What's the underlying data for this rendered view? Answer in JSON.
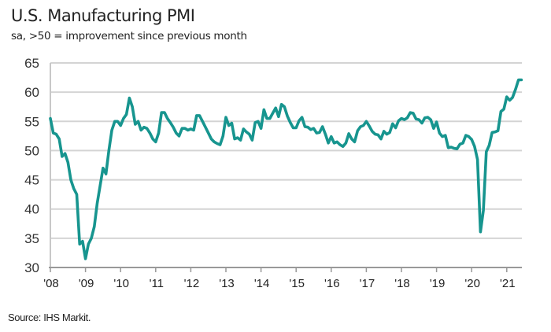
{
  "chart_data": {
    "type": "line",
    "title": "U.S. Manufacturing PMI",
    "subtitle": "sa, >50 = improvement since previous month",
    "source": "Source: IHS Markit.",
    "xlabel": "",
    "ylabel": "",
    "ylim": [
      30,
      65
    ],
    "yticks": [
      "30",
      "35",
      "40",
      "45",
      "50",
      "55",
      "60",
      "65"
    ],
    "xticks": [
      "'08",
      "'09",
      "'10",
      "'11",
      "'12",
      "'13",
      "'14",
      "'15",
      "'16",
      "'17",
      "'18",
      "'19",
      "'20",
      "'21"
    ],
    "grid": "horizontal",
    "line_color": "#17958f",
    "frequency": "monthly",
    "x_start": "2008-01",
    "x_end": "2021-06",
    "series": [
      {
        "values": [
          55.5,
          53.0,
          52.8,
          52.0,
          49.0,
          49.5,
          48.0,
          45.0,
          43.5,
          42.5,
          34.0,
          34.5,
          31.5,
          34.0,
          35.0,
          37.0,
          41.0,
          44.0,
          47.0,
          46.0,
          50.0,
          53.5,
          55.0,
          55.0,
          54.3,
          55.5,
          56.2,
          59.0,
          57.5,
          54.5,
          55.0,
          53.5,
          54.0,
          53.8,
          53.0,
          52.0,
          51.5,
          53.0,
          56.5,
          56.5,
          55.5,
          54.8,
          54.0,
          53.0,
          52.5,
          53.8,
          53.8,
          53.5,
          53.7,
          53.5,
          56.0,
          56.0,
          55.0,
          54.0,
          53.0,
          52.0,
          51.5,
          51.2,
          51.0,
          52.5,
          55.7,
          54.3,
          54.7,
          52.0,
          52.2,
          51.8,
          53.7,
          53.2,
          52.8,
          51.8,
          54.8,
          55.0,
          53.8,
          57.0,
          55.5,
          55.5,
          56.4,
          57.3,
          55.8,
          57.9,
          57.5,
          55.9,
          54.8,
          53.9,
          53.9,
          55.1,
          55.7,
          54.1,
          54.0,
          53.6,
          53.8,
          53.0,
          53.1,
          54.1,
          52.8,
          51.3,
          52.4,
          51.3,
          51.5,
          51.0,
          50.7,
          51.3,
          52.9,
          52.0,
          51.5,
          53.4,
          54.1,
          54.3,
          55.0,
          54.2,
          53.3,
          52.8,
          52.7,
          52.0,
          53.3,
          52.8,
          53.1,
          54.6,
          53.9,
          55.1,
          55.5,
          55.3,
          55.6,
          56.5,
          56.4,
          55.4,
          55.3,
          54.7,
          55.6,
          55.7,
          55.3,
          53.8,
          54.9,
          53.0,
          52.4,
          52.6,
          50.5,
          50.6,
          50.4,
          50.3,
          51.1,
          51.3,
          52.6,
          52.4,
          51.9,
          50.7,
          48.5,
          36.1,
          39.8,
          49.8,
          50.9,
          53.1,
          53.2,
          53.4,
          56.7,
          57.1,
          59.2,
          58.6,
          59.1,
          60.5,
          62.1,
          62.1
        ]
      }
    ]
  }
}
